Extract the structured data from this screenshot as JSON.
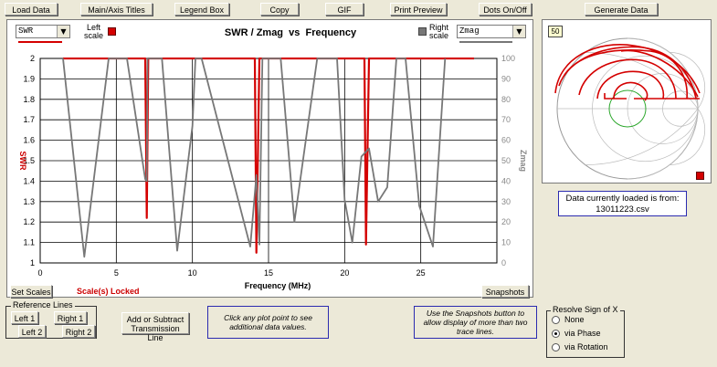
{
  "toolbar": {
    "load_data": "Load Data",
    "titles": "Main/Axis Titles",
    "legend": "Legend Box",
    "copy": "Copy",
    "gif": "GIF",
    "print_preview": "Print Preview",
    "dots": "Dots On/Off",
    "generate": "Generate Data"
  },
  "chart": {
    "left_select": "SWR",
    "right_select": "Zmag",
    "left_scale_label_1": "Left",
    "left_scale_label_2": "scale",
    "right_scale_label_1": "Right",
    "right_scale_label_2": "scale",
    "locked": "Scale(s) Locked",
    "set_scales": "Set Scales",
    "snapshots": "Snapshots"
  },
  "chart_data": {
    "type": "line",
    "title": "SWR / Zmag  vs  Frequency",
    "xlabel": "Frequency (MHz)",
    "ylabel_left": "SWR",
    "ylabel_right": "Zmag",
    "xlim": [
      0,
      30
    ],
    "ylim_left": [
      1,
      2
    ],
    "ylim_right": [
      0,
      100
    ],
    "x_ticks": [
      "0",
      "5",
      "10",
      "15",
      "20",
      "25"
    ],
    "y_ticks_left": [
      "1",
      "1.1",
      "1.2",
      "1.3",
      "1.4",
      "1.5",
      "1.6",
      "1.7",
      "1.8",
      "1.9",
      "2"
    ],
    "y_ticks_right": [
      "0",
      "10",
      "20",
      "30",
      "40",
      "50",
      "60",
      "70",
      "80",
      "90",
      "100"
    ],
    "grid": true,
    "series": [
      {
        "name": "SWR",
        "axis": "left",
        "color": "#d40000",
        "x": [
          1.5,
          6.9,
          7.0,
          7.1,
          7.2,
          13.9,
          14.1,
          14.2,
          14.4,
          14.5,
          21.0,
          21.3,
          21.4,
          21.6,
          22.0,
          28.5
        ],
        "y": [
          2.0,
          2.0,
          1.22,
          2.0,
          2.0,
          2.0,
          2.0,
          1.05,
          2.0,
          2.0,
          2.0,
          2.0,
          1.09,
          2.0,
          2.0,
          2.0
        ]
      },
      {
        "name": "Zmag",
        "axis": "right",
        "color": "#777777",
        "x": [
          1.5,
          2.9,
          4.5,
          5.7,
          6.9,
          7.0,
          7.05,
          8.0,
          9.0,
          10.0,
          10.2,
          10.6,
          13.8,
          14.0,
          14.2,
          14.4,
          14.6,
          15.8,
          16.7,
          18.2,
          19.5,
          20.0,
          20.5,
          21.1,
          21.6,
          22.2,
          22.8,
          23.4,
          24.0,
          24.9,
          25.8,
          26.6
        ],
        "y": [
          100,
          3,
          100,
          100,
          41,
          40,
          100,
          100,
          6,
          67,
          100,
          100,
          8,
          25,
          43,
          9,
          100,
          100,
          20,
          100,
          100,
          31,
          10,
          52,
          56,
          30,
          37,
          100,
          100,
          28,
          8,
          100
        ]
      }
    ]
  },
  "smith": {
    "badge": "50",
    "loaded_line1": "Data currently  loaded is from:",
    "loaded_line2": "13011223.csv"
  },
  "reference": {
    "legend": "Reference Lines",
    "left1": "Left 1",
    "right1": "Right 1",
    "left2": "Left 2",
    "right2": "Right 2"
  },
  "transmission": {
    "line1": "Add or Subtract",
    "line2": "Transmission Line"
  },
  "notes": {
    "click": "Click any plot point to see additional data values.",
    "snap": "Use the Snapshots button to allow display of more than two trace lines."
  },
  "resolve": {
    "legend": "Resolve Sign of X",
    "none": "None",
    "phase": "via Phase",
    "rotation": "via Rotation"
  },
  "colors": {
    "swr": "#d40000",
    "zmag": "#777777",
    "accent_blue": "#2b2bb0"
  }
}
